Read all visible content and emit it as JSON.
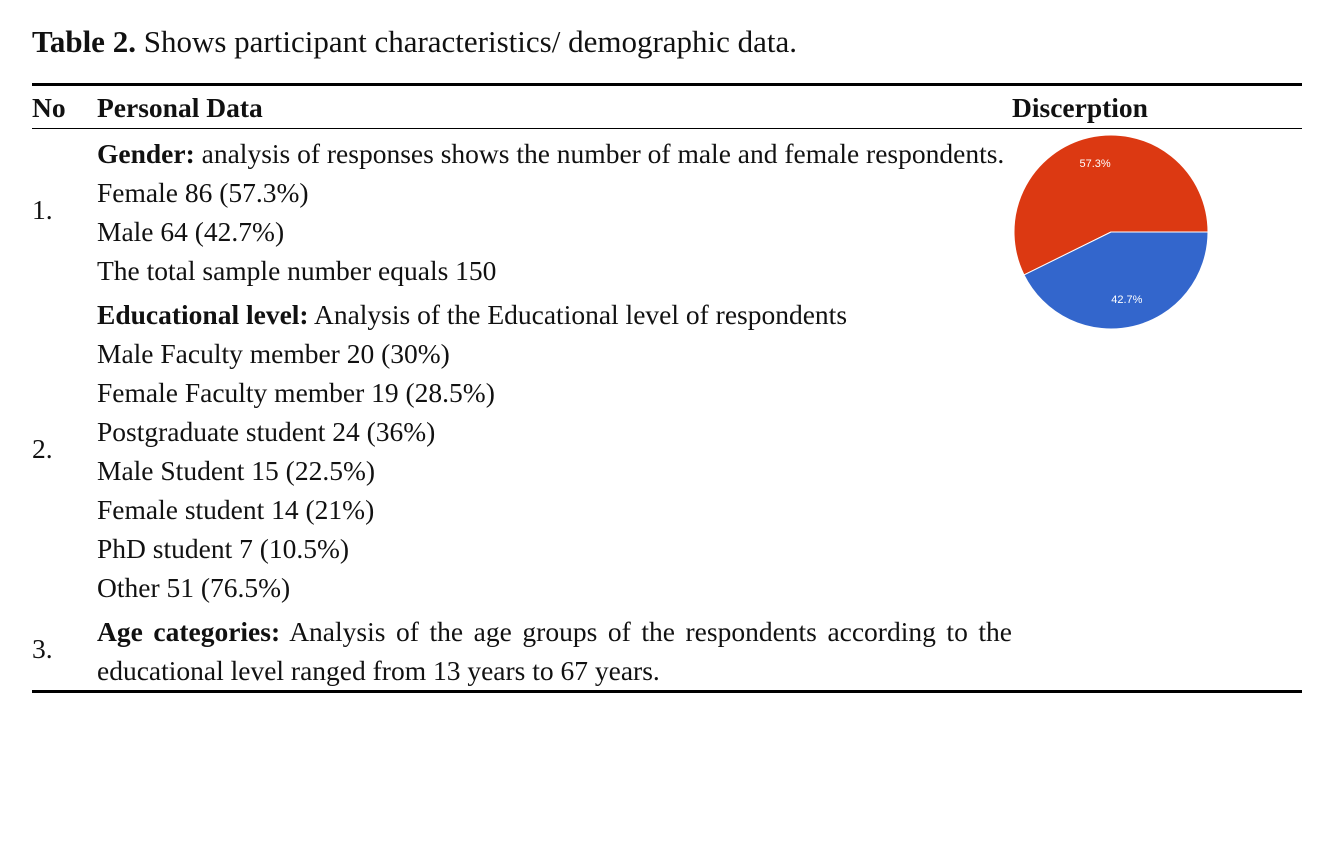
{
  "caption": {
    "label": "Table 2.",
    "text": "Shows participant characteristics/ demographic data."
  },
  "table": {
    "headers": [
      "No",
      "Personal Data",
      "Discerption"
    ],
    "rows": [
      {
        "no": "1.",
        "heading": "Gender:",
        "intro": "analysis of responses shows the number of male and female respondents.",
        "lines": [
          "Female 86 (57.3%)",
          "Male 64 (42.7%)",
          "The total sample number equals 150"
        ]
      },
      {
        "no": "2.",
        "heading": "Educational level:",
        "intro": "Analysis of the Educational level of respondents",
        "lines": [
          "Male Faculty member 20 (30%)",
          "Female Faculty member 19 (28.5%)",
          "Postgraduate student 24 (36%)",
          "Male Student 15 (22.5%)",
          "Female student 14 (21%)",
          "PhD student 7 (10.5%)",
          "Other 51 (76.5%)"
        ]
      },
      {
        "no": "3.",
        "heading": "Age categories:",
        "intro": "Analysis of the age groups of the respondents according to the educational level ranged from 13 years to 67 years.",
        "lines": []
      }
    ]
  },
  "chart_data": {
    "type": "pie",
    "values": [
      57.3,
      42.7
    ],
    "value_labels": [
      "57.3%",
      "42.7%"
    ],
    "colors": [
      "#dc3912",
      "#3366cc"
    ]
  }
}
